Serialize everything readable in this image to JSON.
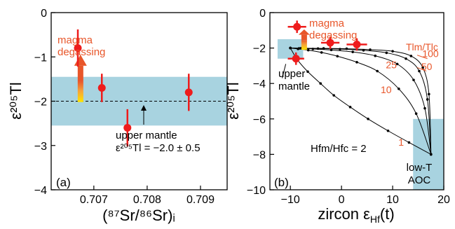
{
  "colors": {
    "band": "#a8d3e0",
    "point": "#ee1c1c",
    "annotation": "#e8562a",
    "arrow_top": "#e8562a",
    "arrow_bottom": "#ffe600",
    "curve": "#000000"
  },
  "chart_data": [
    {
      "type": "scatter",
      "panel_label": "(a)",
      "ylabel": "ε²⁰⁵Tl",
      "xlabel": "(⁸⁷Sr/⁸⁶Sr)ᵢ",
      "xlim": [
        0.7062,
        0.7095
      ],
      "ylim": [
        -4,
        0
      ],
      "xticks": [
        "0.707",
        "0.708",
        "0.709"
      ],
      "xtick_values": [
        0.707,
        0.708,
        0.709
      ],
      "yticks": [
        "0",
        "−1",
        "−2",
        "−3",
        "−4"
      ],
      "ytick_values": [
        0,
        -1,
        -2,
        -3,
        -4
      ],
      "band": {
        "y_center": -2.0,
        "y_halfwidth": 0.55
      },
      "reference_line": {
        "y": -2.0,
        "style": "dashed"
      },
      "points": [
        {
          "x": 0.7067,
          "y": -0.8,
          "yerr": 0.42
        },
        {
          "x": 0.70715,
          "y": -1.7,
          "yerr": 0.32
        },
        {
          "x": 0.70763,
          "y": -2.6,
          "yerr": 0.42
        },
        {
          "x": 0.70878,
          "y": -1.8,
          "yerr": 0.42
        }
      ],
      "annotations": {
        "magma": [
          "magma",
          "degassing"
        ],
        "mantle_line1": "upper mantle",
        "mantle_line2": "ε²⁰⁵Tl = −2.0 ± 0.5"
      }
    },
    {
      "type": "line",
      "panel_label": "(b)",
      "ylabel": "ε²⁰⁵Tl",
      "xlabel": "zircon εHf(t)",
      "xlim": [
        -14,
        20
      ],
      "ylim": [
        -10,
        0
      ],
      "xticks": [
        "−10",
        "0",
        "10",
        "20"
      ],
      "xtick_values": [
        -10,
        0,
        10,
        20
      ],
      "yticks": [
        "0",
        "−2",
        "−4",
        "−6",
        "−8",
        "−10"
      ],
      "ytick_values": [
        0,
        -2,
        -4,
        -6,
        -8,
        -10
      ],
      "box_upper_mantle": {
        "x": [
          -12.5,
          -7.5
        ],
        "y": [
          -2.6,
          -1.5
        ]
      },
      "box_aoc": {
        "x": [
          14,
          20
        ],
        "y": [
          -10,
          -6
        ]
      },
      "endmember_mantle": {
        "x": -10,
        "y": -2.0
      },
      "endmember_aoc": {
        "x": 17.5,
        "y": -8.0
      },
      "series": [
        {
          "label": "1",
          "x": [
            -10,
            -8.6,
            -6.6,
            -4.1,
            -1.5,
            1.7,
            5.2,
            9.1,
            13.2,
            17.5
          ],
          "y": [
            -2.0,
            -2.67,
            -3.33,
            -4.0,
            -4.67,
            -5.33,
            -6.0,
            -6.67,
            -7.33,
            -8.0
          ]
        },
        {
          "label": "10",
          "x": [
            -10,
            -8.5,
            -6.5,
            -3.9,
            -0.8,
            3.0,
            7.0,
            11.2,
            14.6,
            17.5
          ],
          "y": [
            -2.0,
            -2.05,
            -2.12,
            -2.25,
            -2.46,
            -2.8,
            -3.3,
            -4.3,
            -5.7,
            -8.0
          ]
        },
        {
          "label": "25",
          "x": [
            -10,
            -8.3,
            -5.6,
            -2.0,
            2.2,
            6.6,
            10.9,
            14.1,
            16.3,
            17.5
          ],
          "y": [
            -2.0,
            -2.02,
            -2.05,
            -2.11,
            -2.22,
            -2.44,
            -2.9,
            -3.8,
            -5.4,
            -8.0
          ]
        },
        {
          "label": "50",
          "x": [
            -10,
            -7.9,
            -4.6,
            -0.3,
            4.3,
            8.8,
            12.6,
            15.2,
            16.8,
            17.5
          ],
          "y": [
            -2.0,
            -2.01,
            -2.03,
            -2.06,
            -2.13,
            -2.27,
            -2.6,
            -3.3,
            -4.9,
            -8.0
          ]
        },
        {
          "label": "100",
          "x": [
            -10,
            -7.4,
            -3.5,
            1.0,
            5.6,
            10.0,
            13.6,
            15.9,
            17.1,
            17.5
          ],
          "y": [
            -2.0,
            -2.01,
            -2.02,
            -2.04,
            -2.09,
            -2.18,
            -2.45,
            -3.1,
            -4.6,
            -8.0
          ]
        }
      ],
      "points": [
        {
          "x": -8.7,
          "y": -0.8,
          "xerr": 1.8,
          "yerr": 0.35
        },
        {
          "x": -8.9,
          "y": -2.6,
          "xerr": 1.6,
          "yerr": 0.35
        },
        {
          "x": -2.2,
          "y": -1.7,
          "xerr": 1.8,
          "yerr": 0.35
        },
        {
          "x": 3.0,
          "y": -1.8,
          "xerr": 2.0,
          "yerr": 0.35
        }
      ],
      "annotations": {
        "magma": [
          "magma",
          "degassing"
        ],
        "mantle": [
          "upper",
          "mantle"
        ],
        "aoc": [
          "low-T",
          "AOC"
        ],
        "ratio_title": "Tlm/Tlc",
        "hf_ratio": "Hfm/Hfc = 2"
      }
    }
  ]
}
